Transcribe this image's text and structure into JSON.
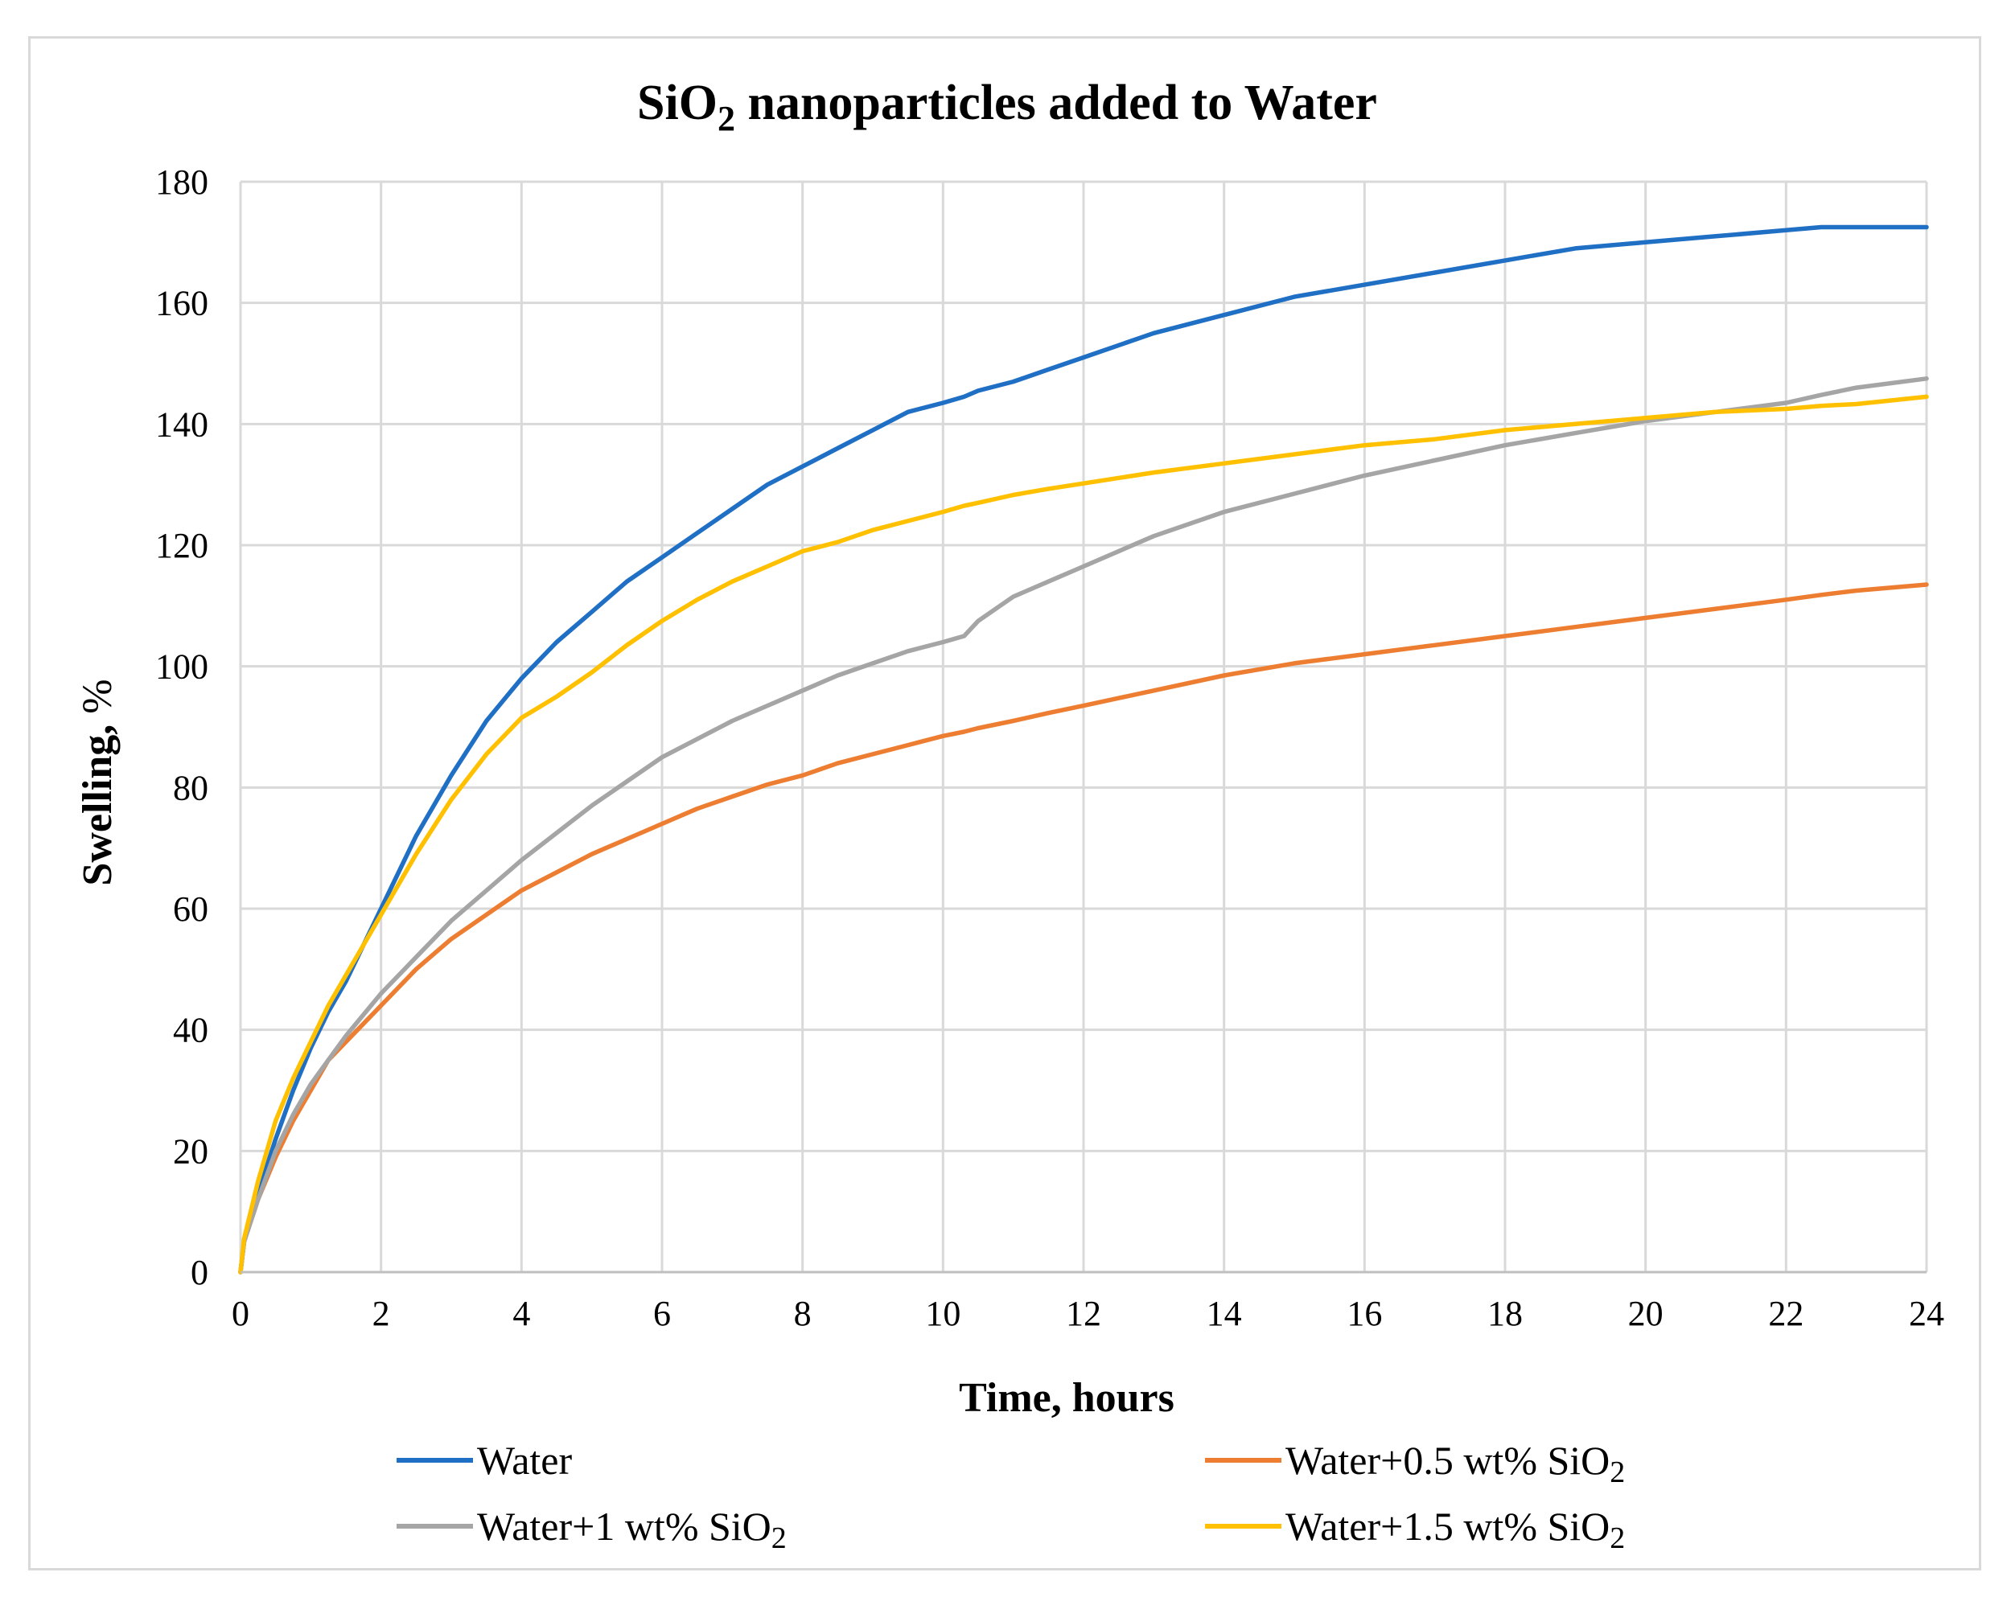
{
  "chart_data": {
    "type": "line",
    "title_main": "SiO",
    "title_sub": "2",
    "title_rest": " nanoparticles added to Water",
    "xlabel": "Time, hours",
    "ylabel_main": "Swelling, ",
    "ylabel_unit": "%",
    "xlim": [
      0,
      24
    ],
    "ylim": [
      0,
      180
    ],
    "x_ticks": [
      "0",
      "2",
      "4",
      "6",
      "8",
      "10",
      "12",
      "14",
      "16",
      "18",
      "20",
      "22",
      "24"
    ],
    "y_ticks": [
      "0",
      "20",
      "40",
      "60",
      "80",
      "100",
      "120",
      "140",
      "160",
      "180"
    ],
    "grid": true,
    "legend_position": "bottom",
    "x": [
      0,
      0.05,
      0.25,
      0.5,
      0.75,
      1,
      1.25,
      1.5,
      2,
      2.5,
      3,
      3.5,
      4,
      4.5,
      5,
      5.5,
      6,
      6.5,
      7,
      7.5,
      8,
      8.5,
      9,
      9.5,
      10,
      10.3,
      10.5,
      11,
      11.5,
      12,
      13,
      14,
      15,
      16,
      17,
      18,
      19,
      20,
      21,
      22,
      22.5,
      23,
      24
    ],
    "series": [
      {
        "name": "Water",
        "legend_main": "Water",
        "legend_sub": "",
        "color": "#1f6fc5",
        "values": [
          0,
          5,
          13,
          22,
          30,
          37,
          43,
          48,
          60,
          72,
          82,
          91,
          98,
          104,
          109,
          114,
          118,
          122,
          126,
          130,
          133,
          136,
          139,
          142,
          143.5,
          144.5,
          145.5,
          147,
          149,
          151,
          155,
          158,
          161,
          163,
          165,
          167,
          169,
          170,
          171,
          172,
          172.5,
          172.5,
          172.5
        ]
      },
      {
        "name": "Water+0.5 wt% SiO2",
        "legend_main": "Water+0.5 wt% SiO",
        "legend_sub": "2",
        "color": "#ed7d31",
        "values": [
          0,
          5,
          12,
          19,
          25,
          30,
          35,
          38,
          44,
          50,
          55,
          59,
          63,
          66,
          69,
          71.5,
          74,
          76.5,
          78.5,
          80.5,
          82,
          84,
          85.5,
          87,
          88.5,
          89.2,
          89.8,
          91,
          92.3,
          93.5,
          96,
          98.5,
          100.5,
          102,
          103.5,
          105,
          106.5,
          108,
          109.5,
          111,
          111.8,
          112.5,
          113.5
        ]
      },
      {
        "name": "Water+1 wt% SiO2",
        "legend_main": "Water+1 wt% SiO",
        "legend_sub": "2",
        "color": "#a5a5a5",
        "values": [
          0,
          5,
          12,
          20,
          26,
          31,
          35,
          39,
          46,
          52,
          58,
          63,
          68,
          72.5,
          77,
          81,
          85,
          88,
          91,
          93.5,
          96,
          98.5,
          100.5,
          102.5,
          104,
          105,
          107.5,
          111.5,
          114,
          116.5,
          121.5,
          125.5,
          128.5,
          131.5,
          134,
          136.5,
          138.5,
          140.5,
          142,
          143.5,
          144.8,
          146,
          147.5
        ]
      },
      {
        "name": "Water+1.5 wt% SiO2",
        "legend_main": "Water+1.5 wt% SiO",
        "legend_sub": "2",
        "color": "#ffc000",
        "values": [
          0,
          5.5,
          15,
          25,
          32,
          38,
          44,
          49,
          59,
          69,
          78,
          85.5,
          91.5,
          95,
          99,
          103.5,
          107.5,
          111,
          114,
          116.5,
          119,
          120.5,
          122.5,
          124,
          125.5,
          126.5,
          127,
          128.3,
          129.3,
          130.2,
          132,
          133.5,
          135,
          136.5,
          137.5,
          139,
          140,
          141,
          142,
          142.5,
          143,
          143.3,
          144.5
        ]
      }
    ]
  }
}
